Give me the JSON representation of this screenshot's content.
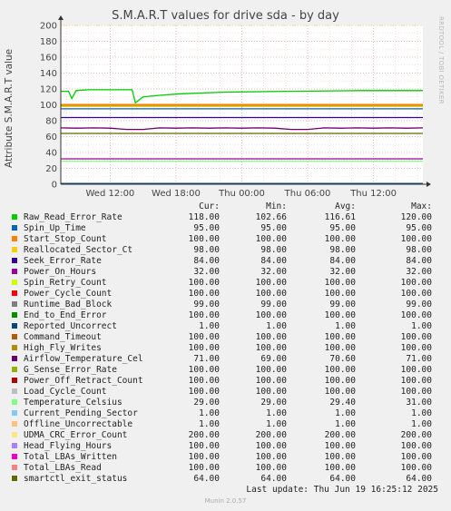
{
  "title": "S.M.A.R.T values for drive sda - by day",
  "watermark": "RRDTOOL / TOBI OETIKER",
  "footer": "Munin 2.0.57",
  "last_update": "Last update: Thu Jun 19 16:25:12 2025",
  "legend_headers": {
    "cur": "Cur:",
    "min": "Min:",
    "avg": "Avg:",
    "max": "Max:"
  },
  "chart_data": {
    "type": "line",
    "title": "S.M.A.R.T values for drive sda - by day",
    "xlabel": "",
    "ylabel": "Attribute S.M.A.R.T value",
    "ylim": [
      0,
      200
    ],
    "yticks": [
      0,
      20,
      40,
      60,
      80,
      100,
      120,
      140,
      160,
      180,
      200
    ],
    "xticks": [
      "Wed 12:00",
      "Wed 18:00",
      "Thu 00:00",
      "Thu 06:00",
      "Thu 12:00"
    ],
    "x_range_hours": [
      7.5,
      40.5
    ],
    "grid": true,
    "series": [
      {
        "name": "Raw_Read_Error_Rate",
        "color": "#00cc00",
        "cur": "118.00",
        "min": "102.66",
        "avg": "116.61",
        "max": "120.00",
        "points": [
          [
            7.5,
            117
          ],
          [
            8.2,
            117
          ],
          [
            8.5,
            108
          ],
          [
            8.9,
            118
          ],
          [
            10.0,
            119
          ],
          [
            12.3,
            119
          ],
          [
            14.0,
            119
          ],
          [
            14.3,
            102.66
          ],
          [
            15.0,
            110
          ],
          [
            16.5,
            112
          ],
          [
            18.5,
            114
          ],
          [
            22.5,
            116
          ],
          [
            28.0,
            117
          ],
          [
            35.0,
            118
          ],
          [
            40.5,
            118
          ]
        ]
      },
      {
        "name": "Spin_Up_Time",
        "color": "#0066b3",
        "cur": "95.00",
        "min": "95.00",
        "avg": "95.00",
        "max": "95.00"
      },
      {
        "name": "Start_Stop_Count",
        "color": "#ff8000",
        "cur": "100.00",
        "min": "100.00",
        "avg": "100.00",
        "max": "100.00"
      },
      {
        "name": "Reallocated_Sector_Ct",
        "color": "#ffcc00",
        "cur": "98.00",
        "min": "98.00",
        "avg": "98.00",
        "max": "98.00"
      },
      {
        "name": "Seek_Error_Rate",
        "color": "#330099",
        "cur": "84.00",
        "min": "84.00",
        "avg": "84.00",
        "max": "84.00"
      },
      {
        "name": "Power_On_Hours",
        "color": "#990099",
        "cur": "32.00",
        "min": "32.00",
        "avg": "32.00",
        "max": "32.00"
      },
      {
        "name": "Spin_Retry_Count",
        "color": "#ccff00",
        "cur": "100.00",
        "min": "100.00",
        "avg": "100.00",
        "max": "100.00"
      },
      {
        "name": "Power_Cycle_Count",
        "color": "#ff0000",
        "cur": "100.00",
        "min": "100.00",
        "avg": "100.00",
        "max": "100.00"
      },
      {
        "name": "Runtime_Bad_Block",
        "color": "#808080",
        "cur": "99.00",
        "min": "99.00",
        "avg": "99.00",
        "max": "99.00"
      },
      {
        "name": "End_to_End_Error",
        "color": "#008f00",
        "cur": "100.00",
        "min": "100.00",
        "avg": "100.00",
        "max": "100.00"
      },
      {
        "name": "Reported_Uncorrect",
        "color": "#00487d",
        "cur": "1.00",
        "min": "1.00",
        "avg": "1.00",
        "max": "1.00"
      },
      {
        "name": "Command_Timeout",
        "color": "#b35a00",
        "cur": "100.00",
        "min": "100.00",
        "avg": "100.00",
        "max": "100.00"
      },
      {
        "name": "High_Fly_Writes",
        "color": "#b38f00",
        "cur": "100.00",
        "min": "100.00",
        "avg": "100.00",
        "max": "100.00"
      },
      {
        "name": "Airflow_Temperature_Cel",
        "color": "#6b006b",
        "cur": "71.00",
        "min": "69.00",
        "avg": "70.60",
        "max": "71.00"
      },
      {
        "name": "G_Sense_Error_Rate",
        "color": "#8fb300",
        "cur": "100.00",
        "min": "100.00",
        "avg": "100.00",
        "max": "100.00"
      },
      {
        "name": "Power_Off_Retract_Count",
        "color": "#b30000",
        "cur": "100.00",
        "min": "100.00",
        "avg": "100.00",
        "max": "100.00"
      },
      {
        "name": "Load_Cycle_Count",
        "color": "#bebebe",
        "cur": "100.00",
        "min": "100.00",
        "avg": "100.00",
        "max": "100.00"
      },
      {
        "name": "Temperature_Celsius",
        "color": "#80ff80",
        "cur": "29.00",
        "min": "29.00",
        "avg": "29.40",
        "max": "31.00"
      },
      {
        "name": "Current_Pending_Sector",
        "color": "#80c9ff",
        "cur": "1.00",
        "min": "1.00",
        "avg": "1.00",
        "max": "1.00"
      },
      {
        "name": "Offline_Uncorrectable",
        "color": "#ffc080",
        "cur": "1.00",
        "min": "1.00",
        "avg": "1.00",
        "max": "1.00"
      },
      {
        "name": "UDMA_CRC_Error_Count",
        "color": "#ffe680",
        "cur": "200.00",
        "min": "200.00",
        "avg": "200.00",
        "max": "200.00"
      },
      {
        "name": "Head_Flying_Hours",
        "color": "#aa80ff",
        "cur": "100.00",
        "min": "100.00",
        "avg": "100.00",
        "max": "100.00"
      },
      {
        "name": "Total_LBAs_Written",
        "color": "#ee00cc",
        "cur": "100.00",
        "min": "100.00",
        "avg": "100.00",
        "max": "100.00"
      },
      {
        "name": "Total_LBAs_Read",
        "color": "#ff8080",
        "cur": "100.00",
        "min": "100.00",
        "avg": "100.00",
        "max": "100.00"
      },
      {
        "name": "smartctl_exit_status",
        "color": "#666600",
        "cur": "64.00",
        "min": "64.00",
        "avg": "64.00",
        "max": "64.00"
      }
    ]
  }
}
